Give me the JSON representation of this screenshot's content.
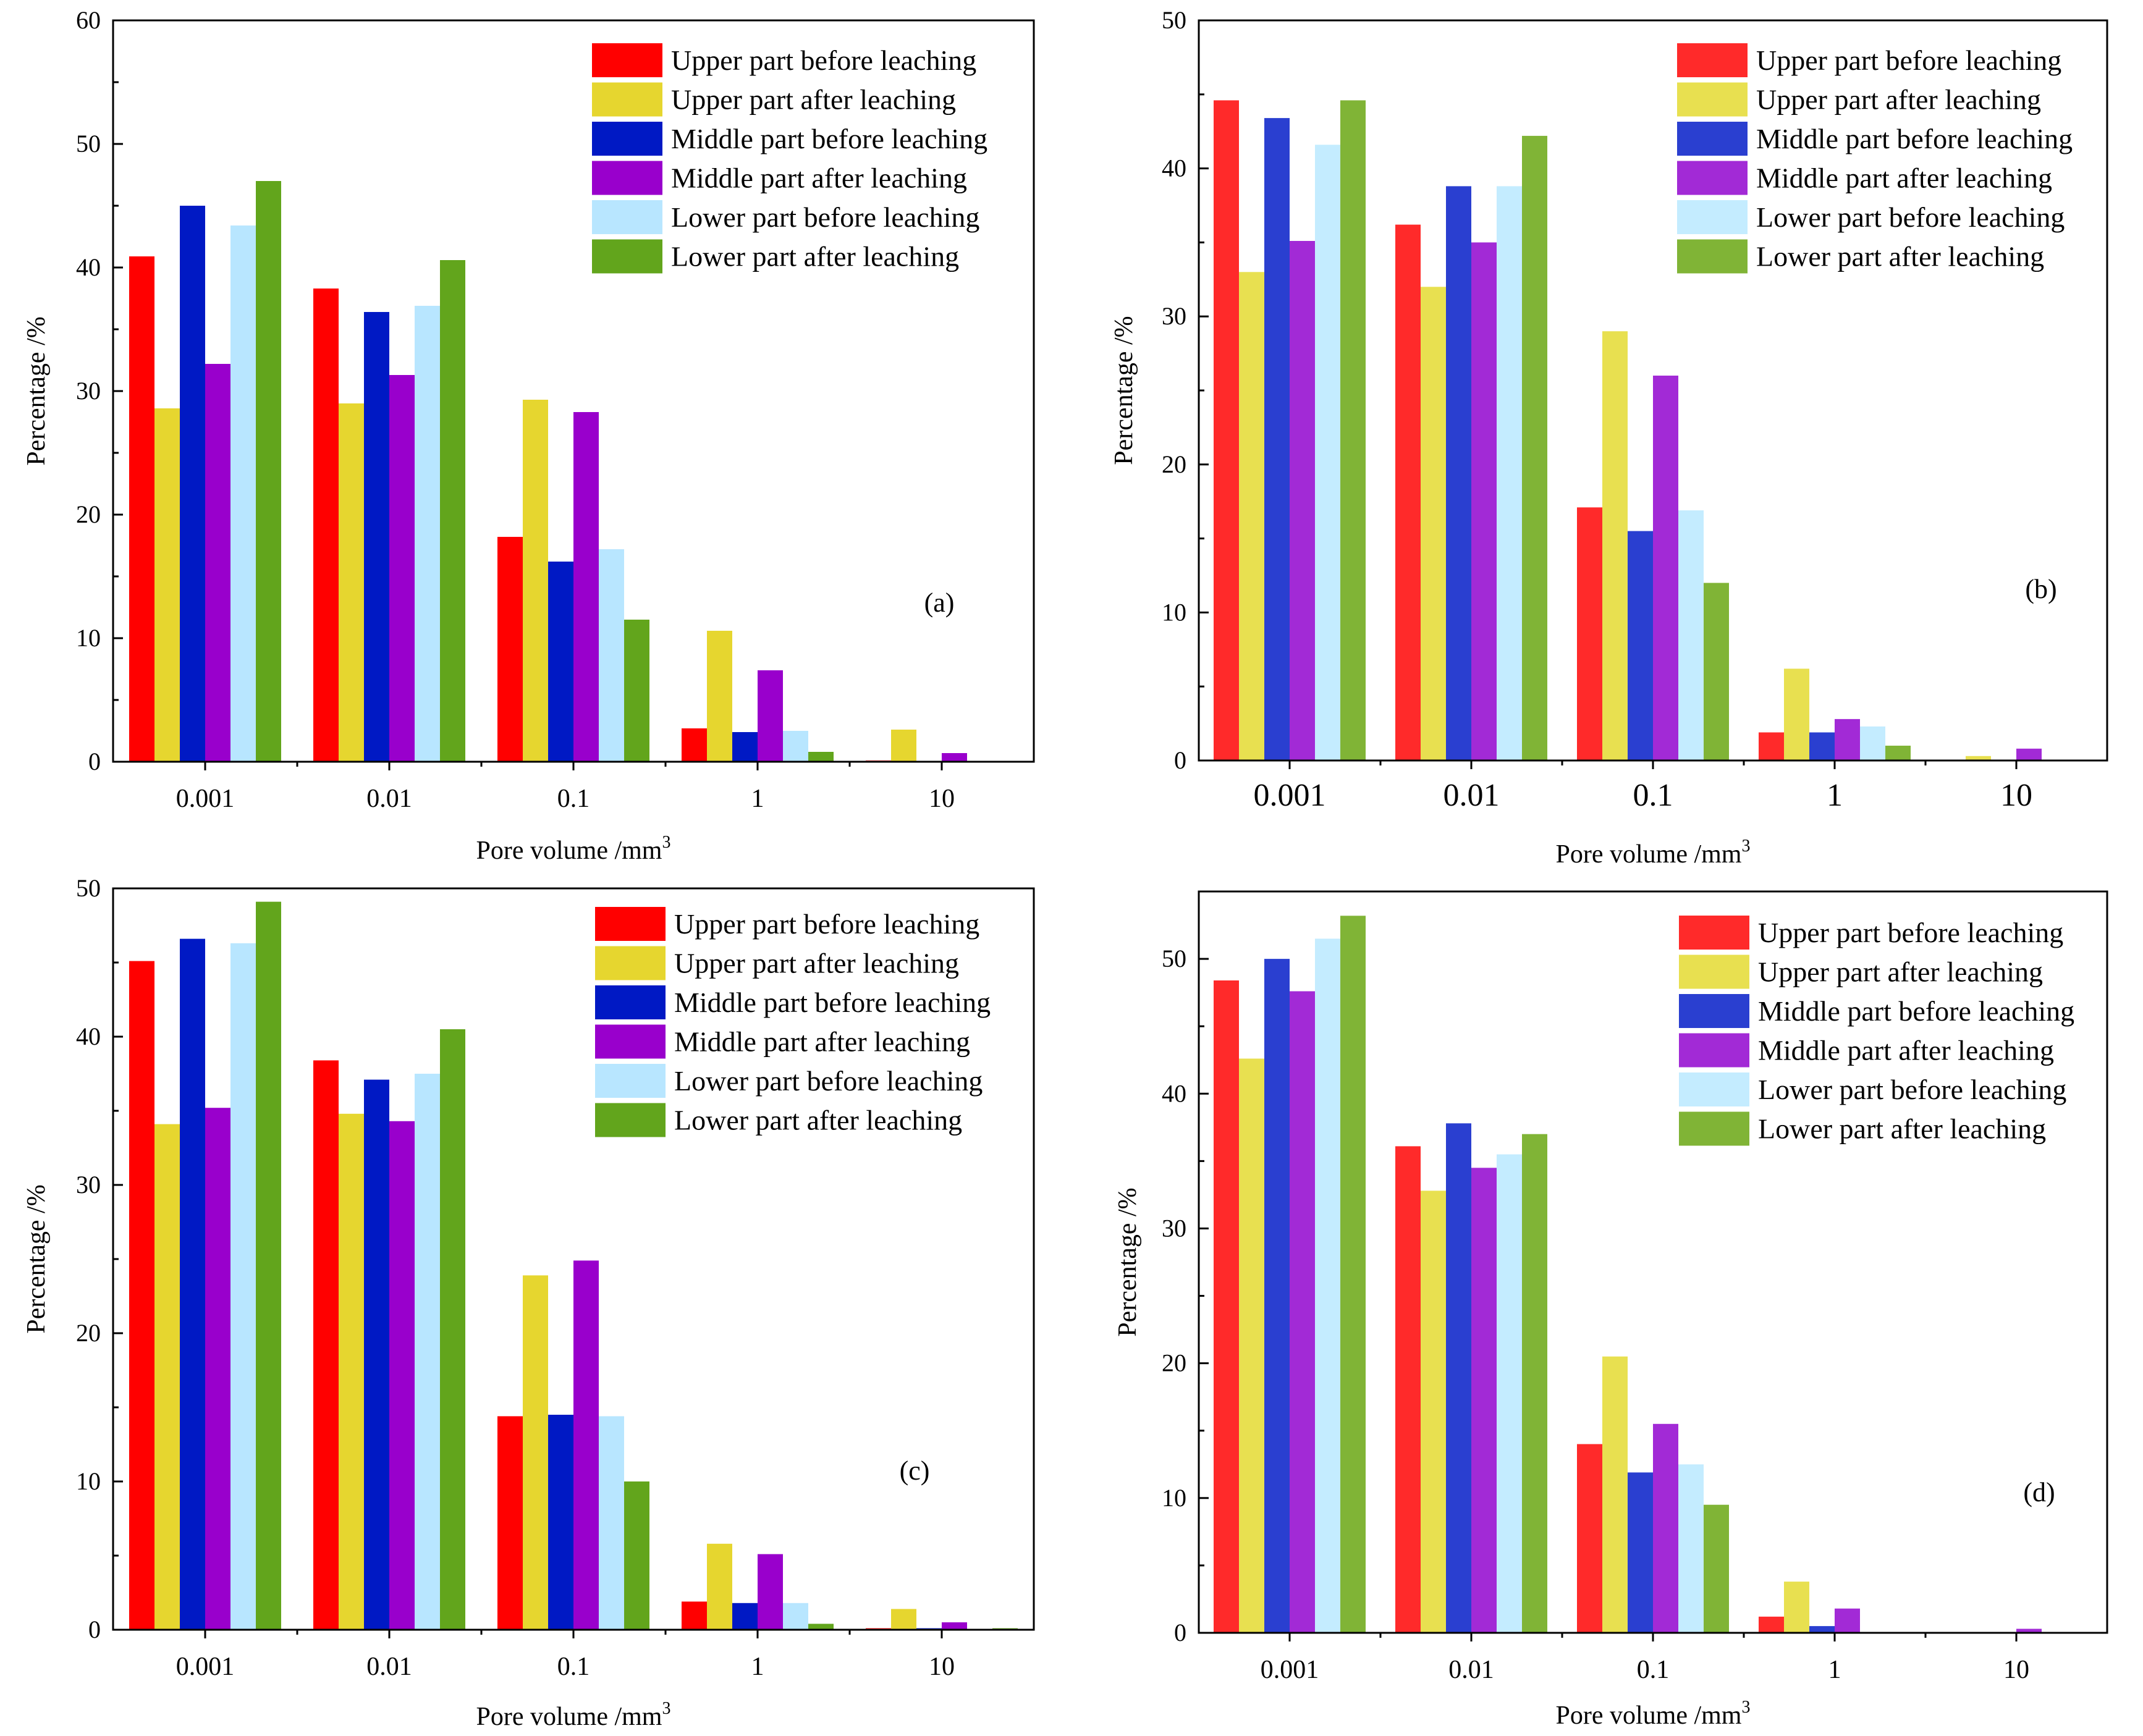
{
  "colors": {
    "set1": [
      "#ff0000",
      "#e6d62f",
      "#0019c4",
      "#9900cc",
      "#b8e6ff",
      "#62a51c"
    ],
    "set2": [
      "#ff2a2a",
      "#e8e050",
      "#2a3fd0",
      "#a22ad6",
      "#c4ecff",
      "#80b436"
    ]
  },
  "chart_data": [
    {
      "type": "bar",
      "panel": "(a)",
      "xlabel": "Pore volume /mm",
      "xlabel_sup": "3",
      "ylabel": "Percentage /%",
      "ylim": [
        0,
        60
      ],
      "yticks": [
        0,
        10,
        20,
        30,
        40,
        50,
        60
      ],
      "categories": [
        "0.001",
        "0.01",
        "0.1",
        "1",
        "10"
      ],
      "colorset": "set1",
      "series": [
        {
          "name": "Upper part before leaching",
          "values": [
            40.9,
            38.3,
            18.2,
            2.7,
            0.1
          ]
        },
        {
          "name": "Upper part after leaching",
          "values": [
            28.6,
            29.0,
            29.3,
            10.6,
            2.6
          ]
        },
        {
          "name": "Middle part before leaching",
          "values": [
            45.0,
            36.4,
            16.2,
            2.4,
            0.0
          ]
        },
        {
          "name": "Middle part after leaching",
          "values": [
            32.2,
            31.3,
            28.3,
            7.4,
            0.7
          ]
        },
        {
          "name": "Lower part before leaching",
          "values": [
            43.4,
            36.9,
            17.2,
            2.5,
            0.0
          ]
        },
        {
          "name": "Lower part after leaching",
          "values": [
            47.0,
            40.6,
            11.5,
            0.8,
            0.0
          ]
        }
      ]
    },
    {
      "type": "bar",
      "panel": "(b)",
      "xlabel": "Pore volume /mm",
      "xlabel_sup": "3",
      "ylabel": "Percentage /%",
      "ylim": [
        0,
        50
      ],
      "yticks": [
        0,
        10,
        20,
        30,
        40,
        50
      ],
      "categories": [
        "0.001",
        "0.01",
        "0.1",
        "1",
        "10"
      ],
      "colorset": "set2",
      "series": [
        {
          "name": "Upper part before leaching",
          "values": [
            44.6,
            36.2,
            17.1,
            1.9,
            0.0
          ]
        },
        {
          "name": "Upper part after leaching",
          "values": [
            33.0,
            32.0,
            29.0,
            6.2,
            0.3
          ]
        },
        {
          "name": "Middle part before leaching",
          "values": [
            43.4,
            38.8,
            15.5,
            1.9,
            0.0
          ]
        },
        {
          "name": "Middle part after leaching",
          "values": [
            35.1,
            35.0,
            26.0,
            2.8,
            0.8
          ]
        },
        {
          "name": "Lower part before leaching",
          "values": [
            41.6,
            38.8,
            16.9,
            2.3,
            0.0
          ]
        },
        {
          "name": "Lower part after leaching",
          "values": [
            44.6,
            42.2,
            12.0,
            1.0,
            0.0
          ]
        }
      ]
    },
    {
      "type": "bar",
      "panel": "(c)",
      "xlabel": "Pore volume /mm",
      "xlabel_sup": "3",
      "ylabel": "Percentage /%",
      "ylim": [
        0,
        50
      ],
      "yticks": [
        0,
        10,
        20,
        30,
        40,
        50
      ],
      "categories": [
        "0.001",
        "0.01",
        "0.1",
        "1",
        "10"
      ],
      "colorset": "set1",
      "series": [
        {
          "name": "Upper part before leaching",
          "values": [
            45.1,
            38.4,
            14.4,
            1.9,
            0.1
          ]
        },
        {
          "name": "Upper part after leaching",
          "values": [
            34.1,
            34.8,
            23.9,
            5.8,
            1.4
          ]
        },
        {
          "name": "Middle part before leaching",
          "values": [
            46.6,
            37.1,
            14.5,
            1.8,
            0.1
          ]
        },
        {
          "name": "Middle part after leaching",
          "values": [
            35.2,
            34.3,
            24.9,
            5.1,
            0.5
          ]
        },
        {
          "name": "Lower part before leaching",
          "values": [
            46.3,
            37.5,
            14.4,
            1.8,
            0.0
          ]
        },
        {
          "name": "Lower part after leaching",
          "values": [
            49.1,
            40.5,
            10.0,
            0.4,
            0.1
          ]
        }
      ]
    },
    {
      "type": "bar",
      "panel": "(d)",
      "xlabel": "Pore volume /mm",
      "xlabel_sup": "3",
      "ylabel": "Percentage /%",
      "ylim": [
        0,
        55
      ],
      "yticks": [
        0,
        10,
        20,
        30,
        40,
        50
      ],
      "categories": [
        "0.001",
        "0.01",
        "0.1",
        "1",
        "10"
      ],
      "colorset": "set2",
      "series": [
        {
          "name": "Upper part before leaching",
          "values": [
            48.4,
            36.1,
            14.0,
            1.2,
            0.0
          ]
        },
        {
          "name": "Upper part after leaching",
          "values": [
            42.6,
            32.8,
            20.5,
            3.8,
            0.0
          ]
        },
        {
          "name": "Middle part before leaching",
          "values": [
            50.0,
            37.8,
            11.9,
            0.5,
            0.0
          ]
        },
        {
          "name": "Middle part after leaching",
          "values": [
            47.6,
            34.5,
            15.5,
            1.8,
            0.3
          ]
        },
        {
          "name": "Lower part before leaching",
          "values": [
            51.5,
            35.5,
            12.5,
            0.0,
            0.0
          ]
        },
        {
          "name": "Lower part after leaching",
          "values": [
            53.2,
            37.0,
            9.5,
            0.0,
            0.0
          ]
        }
      ]
    }
  ]
}
